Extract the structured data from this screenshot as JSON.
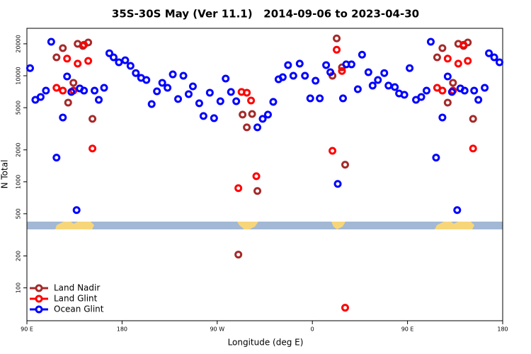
{
  "chart_data": {
    "type": "scatter",
    "title": "35S-30S May (Ver 11.1)   2014-09-06 to 2023-04-30",
    "x_label": "Longitude (deg E)",
    "y_label": "N Total",
    "xlim": [
      90,
      540
    ],
    "xticks": [
      {
        "value": 90,
        "label": "90 E"
      },
      180,
      {
        "value": 270,
        "label": "90 W"
      },
      {
        "value": 360,
        "label": "0"
      },
      {
        "value": 450,
        "label": "90 E"
      },
      {
        "value": 540,
        "label": "180"
      }
    ],
    "ylim": [
      49,
      28000
    ],
    "yticks": [
      100,
      200,
      500,
      1000,
      2000,
      5000,
      10000,
      20000
    ],
    "log_y": true,
    "grid": false,
    "legend": "bottom-left",
    "series": [
      {
        "name": "Land Nadir",
        "color": "#a52a2a",
        "x": [
          118,
          124,
          129,
          134,
          138,
          143,
          148,
          152,
          290,
          294,
          298,
          303,
          308,
          379,
          383,
          388,
          391,
          478,
          483,
          488,
          493,
          498,
          503,
          507,
          512
        ],
        "values": [
          14900,
          18200,
          5580,
          8580,
          20000,
          19100,
          20600,
          3920,
          206,
          4300,
          3260,
          4360,
          819,
          10000,
          22500,
          12000,
          1450,
          14900,
          18200,
          5580,
          8580,
          20000,
          19100,
          20600,
          3920
        ]
      },
      {
        "name": "Land Glint",
        "color": "#ff0000",
        "x": [
          118,
          124,
          128,
          134,
          138,
          144,
          148,
          152,
          290,
          293,
          298,
          302,
          307,
          379,
          383,
          388,
          391,
          478,
          483,
          488,
          493,
          498,
          503,
          507,
          512
        ],
        "values": [
          7700,
          7240,
          14500,
          7240,
          13000,
          19600,
          13800,
          2060,
          871,
          7030,
          6920,
          5840,
          1130,
          1960,
          17600,
          11100,
          65,
          7700,
          7240,
          14500,
          7240,
          13000,
          19600,
          13800,
          2060
        ]
      },
      {
        "name": "Ocean Glint",
        "color": "#0000ff",
        "x": [
          93,
          98,
          103,
          108,
          113,
          118,
          124,
          128,
          132,
          137,
          140,
          144,
          154,
          158,
          163,
          168,
          172,
          177,
          183,
          188,
          193,
          198,
          203,
          208,
          213,
          218,
          223,
          228,
          233,
          238,
          243,
          247,
          253,
          257,
          263,
          267,
          273,
          278,
          283,
          288,
          308,
          313,
          318,
          323,
          328,
          332,
          337,
          342,
          348,
          353,
          358,
          363,
          367,
          373,
          377,
          384,
          389,
          392,
          397,
          403,
          407,
          413,
          417,
          422,
          428,
          432,
          438,
          442,
          447,
          452,
          458,
          463,
          468,
          472,
          477,
          483,
          488,
          492,
          497,
          500,
          504,
          513,
          517,
          523,
          527,
          532,
          537
        ],
        "values": [
          11800,
          5930,
          6310,
          7240,
          20900,
          1690,
          4040,
          9850,
          7030,
          541,
          7590,
          7240,
          7240,
          5930,
          7700,
          16300,
          14900,
          13400,
          14000,
          12400,
          10600,
          9550,
          9120,
          5410,
          7130,
          8580,
          7700,
          10300,
          6030,
          10000,
          6710,
          7940,
          5500,
          4170,
          6920,
          3980,
          5750,
          9400,
          7030,
          5750,
          3260,
          3920,
          4300,
          5670,
          9260,
          9700,
          12600,
          10000,
          13000,
          10000,
          6120,
          8980,
          6120,
          12600,
          10800,
          955,
          6120,
          12800,
          12800,
          7470,
          15800,
          10800,
          8070,
          9120,
          10600,
          8070,
          7820,
          6810,
          6610,
          11800,
          5930,
          6310,
          7240,
          20900,
          1690,
          4040,
          9850,
          7030,
          541,
          7590,
          7240,
          7240,
          5930,
          7700,
          16300,
          14900,
          13400
        ]
      }
    ]
  }
}
